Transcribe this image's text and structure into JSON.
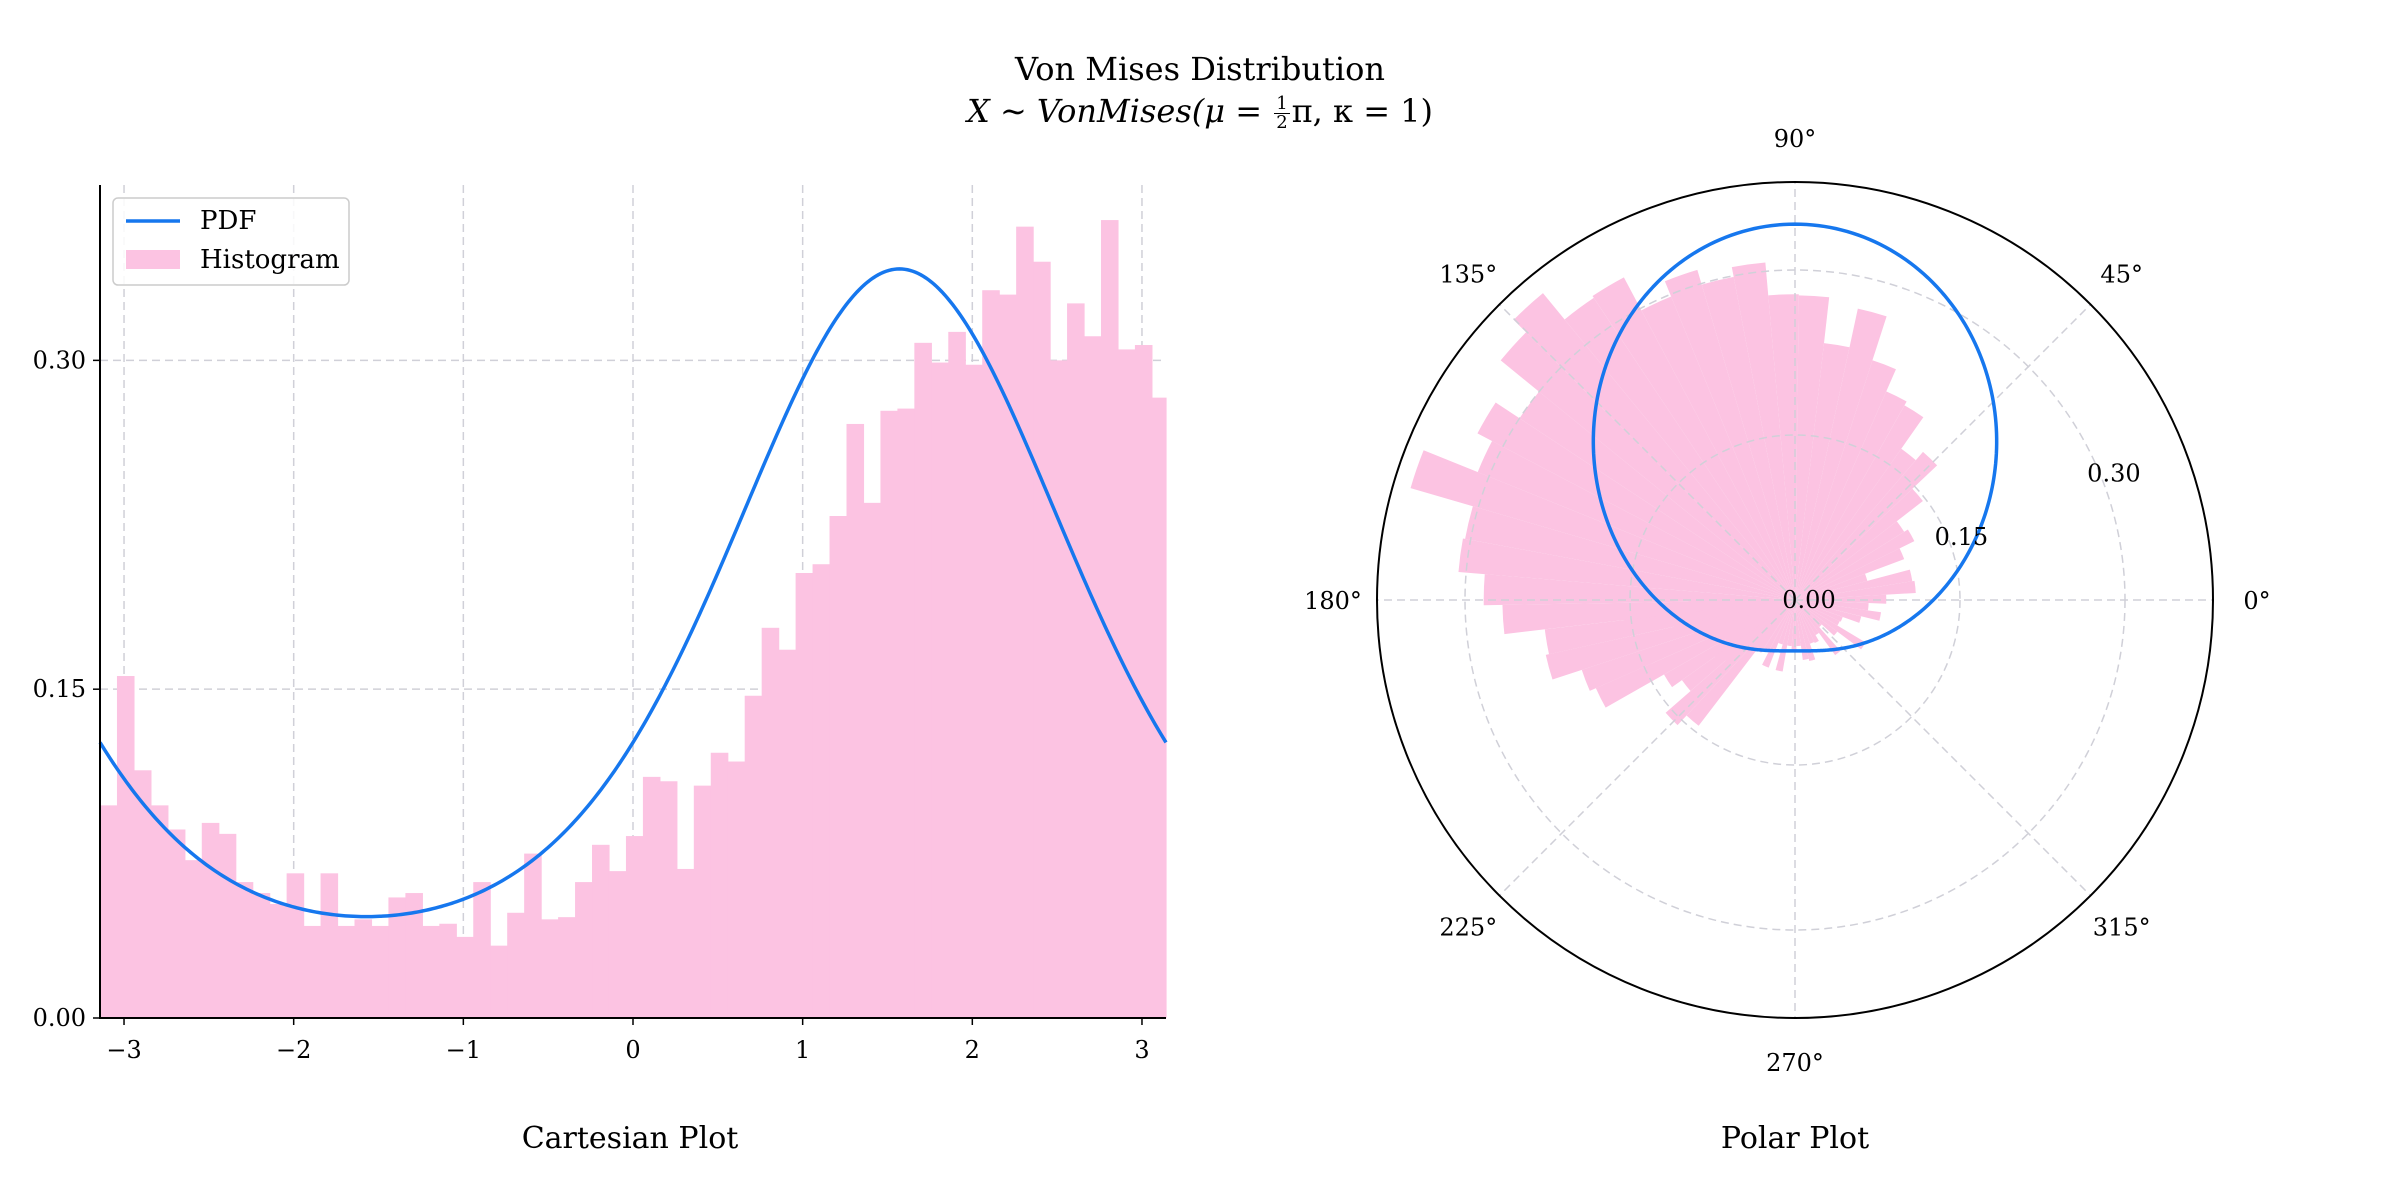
{
  "title": "Von Mises Distribution",
  "subtitle": {
    "pre": "X ∼ VonMises(μ = ",
    "frac_num": "1",
    "frac_den": "2",
    "post_pi": "π",
    "post": ", κ = 1)"
  },
  "colors": {
    "pdf": "#1677ee",
    "histogram": "#fcc3e2",
    "grid": "#d0d0d8",
    "axis": "#000000"
  },
  "chart_data": [
    {
      "type": "bar",
      "subplot": "cartesian",
      "xlabel": "Cartesian Plot",
      "ylabel": "",
      "xlim": [
        -3.1416,
        3.1416
      ],
      "ylim": [
        0,
        0.38
      ],
      "xticks": [
        -3,
        -2,
        -1,
        0,
        1,
        2,
        3
      ],
      "xtick_labels": [
        "−3",
        "−2",
        "−1",
        "0",
        "1",
        "2",
        "3"
      ],
      "yticks": [
        0,
        0.15,
        0.3
      ],
      "ytick_labels": [
        "0.00",
        "0.15",
        "0.30"
      ],
      "grid": true,
      "legend": {
        "placement": "top-left",
        "entries": [
          "PDF",
          "Histogram"
        ]
      },
      "pdf": {
        "name": "PDF",
        "mu": 1.5708,
        "kappa": 1
      },
      "histogram": {
        "name": "Histogram",
        "bin_width": 0.1,
        "x_start": -3.1416,
        "values": [
          0.097,
          0.156,
          0.113,
          0.097,
          0.086,
          0.072,
          0.089,
          0.084,
          0.062,
          0.057,
          0.052,
          0.066,
          0.042,
          0.066,
          0.042,
          0.045,
          0.042,
          0.055,
          0.057,
          0.042,
          0.043,
          0.037,
          0.062,
          0.033,
          0.048,
          0.075,
          0.045,
          0.046,
          0.062,
          0.079,
          0.067,
          0.083,
          0.11,
          0.108,
          0.068,
          0.106,
          0.121,
          0.117,
          0.147,
          0.178,
          0.168,
          0.203,
          0.207,
          0.229,
          0.271,
          0.235,
          0.277,
          0.278,
          0.308,
          0.299,
          0.313,
          0.298,
          0.332,
          0.33,
          0.361,
          0.345,
          0.3,
          0.326,
          0.311,
          0.364,
          0.305,
          0.307,
          0.283,
          0.266,
          0.229,
          0.232,
          0.204,
          0.198,
          0.137,
          0.126,
          0.156,
          0.144
        ]
      }
    },
    {
      "type": "bar",
      "subplot": "polar",
      "xlabel": "Polar Plot",
      "angle_ticks_deg": [
        0,
        45,
        90,
        135,
        180,
        225,
        270,
        315
      ],
      "angle_tick_labels": [
        "0°",
        "45°",
        "90°",
        "135°",
        "180°",
        "225°",
        "270°",
        "315°"
      ],
      "rlim": [
        0,
        0.38
      ],
      "rticks": [
        0,
        0.15,
        0.3
      ],
      "rtick_labels": [
        "0.00",
        "0.15",
        "0.30"
      ],
      "grid": true,
      "uses_same_series": "cartesian"
    }
  ]
}
